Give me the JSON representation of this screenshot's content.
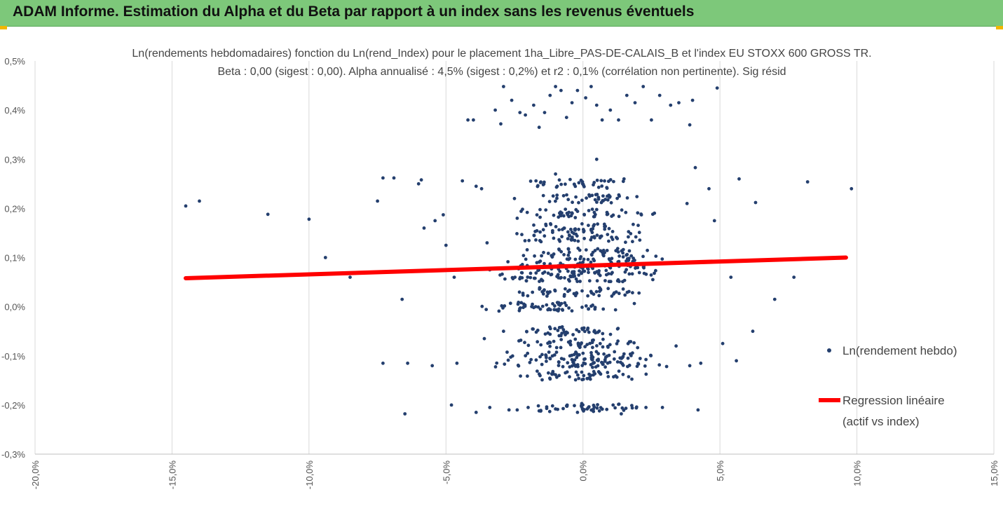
{
  "banner": {
    "title": "ADAM Informe. Estimation du Alpha et du Beta par rapport à un index sans les revenus éventuels"
  },
  "colors": {
    "banner_bg": "#7dc87a",
    "accent": "#f2b700",
    "points": "#243f6e",
    "regression": "#ff0000",
    "grid": "#d9d9d9"
  },
  "chart_data": {
    "type": "scatter",
    "title": "Ln(rendements hebdomadaires) fonction du Ln(rend_Index) pour le placement 1ha_Libre_PAS-DE-CALAIS_B et l'index EU STOXX 600 GROSS TR.",
    "subtitle": "Beta : 0,00 (sigest : 0,00). Alpha annualisé : 4,5% (sigest : 0,2%) et r2 : 0,1% (corrélation non pertinente). Sig résid",
    "xlabel": "",
    "ylabel": "",
    "xlim": [
      -20,
      15
    ],
    "ylim": [
      -0.3,
      0.5
    ],
    "x_ticks": [
      -20,
      -15,
      -10,
      -5,
      0,
      5,
      10,
      15
    ],
    "x_tick_labels": [
      "-20,0%",
      "-15,0%",
      "-10,0%",
      "-5,0%",
      "0,0%",
      "5,0%",
      "10,0%",
      "15,0%"
    ],
    "y_ticks": [
      0.5,
      0.4,
      0.3,
      0.2,
      0.1,
      0.0,
      -0.1,
      -0.2,
      -0.3
    ],
    "y_tick_labels": [
      "0,5%",
      "0,4%",
      "0,3%",
      "0,2%",
      "0,1%",
      "0,0%",
      "-0,1%",
      "-0,2%",
      "-0,3%"
    ],
    "grid": "vertical",
    "legend_position": "right",
    "series": [
      {
        "name": "Ln(rendement hebdo)",
        "kind": "scatter",
        "points": [
          [
            -14.5,
            0.205
          ],
          [
            -14.0,
            0.215
          ],
          [
            -11.5,
            0.188
          ],
          [
            -10.0,
            0.178
          ],
          [
            -9.4,
            0.1
          ],
          [
            -8.5,
            0.06
          ],
          [
            -7.5,
            0.215
          ],
          [
            -7.3,
            0.262
          ],
          [
            -6.9,
            0.262
          ],
          [
            -7.3,
            -0.115
          ],
          [
            -6.6,
            0.015
          ],
          [
            -6.4,
            -0.115
          ],
          [
            -6.0,
            0.25
          ],
          [
            -5.9,
            0.258
          ],
          [
            -5.8,
            0.16
          ],
          [
            -5.4,
            0.175
          ],
          [
            -5.5,
            -0.12
          ],
          [
            -5.1,
            0.187
          ],
          [
            -5.0,
            0.125
          ],
          [
            -4.7,
            0.06
          ],
          [
            -4.6,
            -0.115
          ],
          [
            -4.4,
            0.256
          ],
          [
            -4.2,
            0.38
          ],
          [
            -4.0,
            0.38
          ],
          [
            -3.9,
            0.245
          ],
          [
            -3.7,
            0.24
          ],
          [
            -3.5,
            0.13
          ],
          [
            -3.4,
            0.075
          ],
          [
            -3.2,
            0.4
          ],
          [
            -3.0,
            0.372
          ],
          [
            -2.9,
            0.448
          ],
          [
            -2.6,
            0.42
          ],
          [
            -2.5,
            0.22
          ],
          [
            -2.4,
            0.18
          ],
          [
            -2.3,
            0.395
          ],
          [
            -2.1,
            0.39
          ],
          [
            -1.8,
            0.41
          ],
          [
            -1.6,
            0.365
          ],
          [
            -1.4,
            0.395
          ],
          [
            -1.2,
            0.43
          ],
          [
            -1.0,
            0.448
          ],
          [
            -0.8,
            0.44
          ],
          [
            -0.6,
            0.385
          ],
          [
            -0.4,
            0.415
          ],
          [
            -0.2,
            0.44
          ],
          [
            0.1,
            0.425
          ],
          [
            0.3,
            0.448
          ],
          [
            0.5,
            0.41
          ],
          [
            0.7,
            0.38
          ],
          [
            1.0,
            0.4
          ],
          [
            1.3,
            0.38
          ],
          [
            1.6,
            0.43
          ],
          [
            1.9,
            0.415
          ],
          [
            2.2,
            0.448
          ],
          [
            2.5,
            0.38
          ],
          [
            2.8,
            0.43
          ],
          [
            3.2,
            0.41
          ],
          [
            3.5,
            0.415
          ],
          [
            3.9,
            0.37
          ],
          [
            4.0,
            0.42
          ],
          [
            4.9,
            0.445
          ],
          [
            -1.0,
            0.27
          ],
          [
            0.5,
            0.3
          ],
          [
            1.5,
            0.26
          ],
          [
            3.8,
            0.21
          ],
          [
            4.1,
            0.283
          ],
          [
            4.6,
            0.24
          ],
          [
            5.7,
            0.26
          ],
          [
            6.3,
            0.212
          ],
          [
            8.2,
            0.254
          ],
          [
            9.8,
            0.24
          ],
          [
            4.8,
            0.175
          ],
          [
            5.4,
            0.06
          ],
          [
            5.6,
            -0.11
          ],
          [
            6.2,
            -0.05
          ],
          [
            7.0,
            0.015
          ],
          [
            7.7,
            0.06
          ],
          [
            5.1,
            -0.075
          ],
          [
            4.2,
            -0.21
          ],
          [
            -6.5,
            -0.218
          ],
          [
            -4.8,
            -0.2
          ],
          [
            -3.9,
            -0.215
          ],
          [
            -3.4,
            -0.205
          ],
          [
            -2.7,
            -0.21
          ],
          [
            -2.4,
            -0.21
          ],
          [
            -2.0,
            -0.205
          ],
          [
            -1.6,
            -0.212
          ],
          [
            -1.0,
            -0.208
          ],
          [
            -0.6,
            -0.202
          ],
          [
            -0.2,
            -0.215
          ],
          [
            0.2,
            -0.205
          ],
          [
            0.6,
            -0.212
          ],
          [
            1.1,
            -0.2
          ],
          [
            1.4,
            -0.218
          ],
          [
            1.8,
            -0.206
          ],
          [
            2.3,
            -0.205
          ],
          [
            2.9,
            -0.205
          ],
          [
            -2.9,
            -0.05
          ],
          [
            -3.6,
            -0.065
          ],
          [
            3.4,
            -0.08
          ],
          [
            3.9,
            -0.12
          ],
          [
            4.3,
            -0.115
          ]
        ],
        "band_rows": [
          {
            "y": 0.0,
            "from": -4.0,
            "to": 2.2
          },
          {
            "y": 0.03,
            "from": -3.0,
            "to": 2.5
          },
          {
            "y": 0.06,
            "from": -3.5,
            "to": 3.0
          },
          {
            "y": 0.075,
            "from": -3.0,
            "to": 3.3
          },
          {
            "y": 0.09,
            "from": -3.0,
            "to": 3.6
          },
          {
            "y": 0.11,
            "from": -2.5,
            "to": 3.0
          },
          {
            "y": 0.14,
            "from": -2.6,
            "to": 2.6
          },
          {
            "y": 0.16,
            "from": -2.5,
            "to": 2.5
          },
          {
            "y": 0.19,
            "from": -2.5,
            "to": 2.8
          },
          {
            "y": 0.22,
            "from": -1.8,
            "to": 2.5
          },
          {
            "y": 0.25,
            "from": -2.2,
            "to": 2.0
          },
          {
            "y": -0.05,
            "from": -2.5,
            "to": 2.3
          },
          {
            "y": -0.075,
            "from": -2.8,
            "to": 2.5
          },
          {
            "y": -0.1,
            "from": -3.3,
            "to": 3.0
          },
          {
            "y": -0.115,
            "from": -3.5,
            "to": 3.3
          },
          {
            "y": -0.14,
            "from": -2.7,
            "to": 2.7
          },
          {
            "y": -0.205,
            "from": -2.0,
            "to": 2.5
          }
        ]
      },
      {
        "name": "Regression linéaire",
        "name_line2": "(actif vs index)",
        "kind": "line",
        "points": [
          [
            -14.5,
            0.058
          ],
          [
            9.6,
            0.1
          ]
        ]
      }
    ]
  }
}
